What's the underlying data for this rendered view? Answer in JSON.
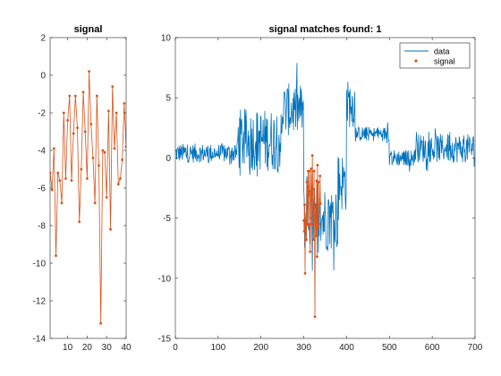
{
  "chart_data": [
    {
      "type": "line",
      "title": "signal",
      "xlim": [
        1,
        40
      ],
      "ylim": [
        -14,
        2
      ],
      "xticks": [
        10,
        20,
        30,
        40
      ],
      "yticks": [
        2,
        0,
        -2,
        -4,
        -6,
        -8,
        -10,
        -12,
        -14
      ],
      "series": [
        {
          "color": "#d95319",
          "marker": "dot",
          "x": [
            1,
            2,
            3,
            4,
            5,
            6,
            7,
            8,
            9,
            10,
            11,
            12,
            13,
            14,
            15,
            16,
            17,
            18,
            19,
            20,
            21,
            22,
            23,
            24,
            25,
            26,
            27,
            28,
            29,
            30,
            31,
            32,
            33,
            34,
            35,
            36,
            37,
            38,
            39,
            40
          ],
          "y": [
            -5.2,
            -6.1,
            -3.9,
            -9.6,
            -5.2,
            -5.6,
            -6.8,
            -2.0,
            -5.5,
            -2.4,
            -1.1,
            -5.6,
            -3.1,
            -1.1,
            -2.8,
            -7.8,
            -5.0,
            -0.9,
            -3.0,
            -5.5,
            0.2,
            -2.6,
            -4.4,
            -6.8,
            -1.1,
            -4.8,
            -13.2,
            -4.0,
            -4.1,
            -6.5,
            -1.9,
            -8.2,
            -0.6,
            -3.9,
            -2.0,
            -5.8,
            -5.5,
            -4.5,
            -1.5,
            -3.8
          ]
        }
      ]
    },
    {
      "type": "line",
      "title": "signal matches found: 1",
      "xlim": [
        0,
        700
      ],
      "ylim": [
        -15,
        10
      ],
      "xticks": [
        0,
        100,
        200,
        300,
        400,
        500,
        600,
        700
      ],
      "yticks": [
        10,
        5,
        0,
        -5,
        -10,
        -15
      ],
      "legend": {
        "position": "top-right",
        "entries": [
          "data",
          "signal"
        ]
      },
      "series": [
        {
          "name": "data",
          "color": "#0072bd",
          "marker": "none",
          "segments": [
            {
              "x_from": 0,
              "x_to": 145,
              "mean": 0.4,
              "noise": 0.8
            },
            {
              "x_from": 145,
              "x_to": 250,
              "mean": 1.5,
              "noise": 2.6
            },
            {
              "x_from": 250,
              "x_to": 300,
              "mean": 4.0,
              "noise": 2.2
            },
            {
              "x_from": 300,
              "x_to": 380,
              "mean": -5.0,
              "noise": 2.8
            },
            {
              "x_from": 380,
              "x_to": 400,
              "mean": -2.0,
              "noise": 2.5
            },
            {
              "x_from": 400,
              "x_to": 420,
              "mean": 4.5,
              "noise": 2.0
            },
            {
              "x_from": 420,
              "x_to": 500,
              "mean": 2.0,
              "noise": 0.6
            },
            {
              "x_from": 500,
              "x_to": 560,
              "mean": 0.0,
              "noise": 0.7
            },
            {
              "x_from": 560,
              "x_to": 700,
              "mean": 0.8,
              "noise": 1.2
            }
          ]
        },
        {
          "name": "signal",
          "color": "#d95319",
          "marker": "dot",
          "x_from": 300,
          "x_step": 1,
          "y": [
            -5.2,
            -6.1,
            -3.9,
            -9.6,
            -5.2,
            -5.6,
            -6.8,
            -2.0,
            -5.5,
            -2.4,
            -1.1,
            -5.6,
            -3.1,
            -1.1,
            -2.8,
            -7.8,
            -5.0,
            -0.9,
            -3.0,
            -5.5,
            0.2,
            -2.6,
            -4.4,
            -6.8,
            -1.1,
            -4.8,
            -13.2,
            -4.0,
            -4.1,
            -6.5,
            -1.9,
            -8.2,
            -0.6,
            -3.9,
            -2.0,
            -5.8,
            -5.5,
            -4.5,
            -1.5,
            -3.8
          ]
        }
      ]
    }
  ]
}
